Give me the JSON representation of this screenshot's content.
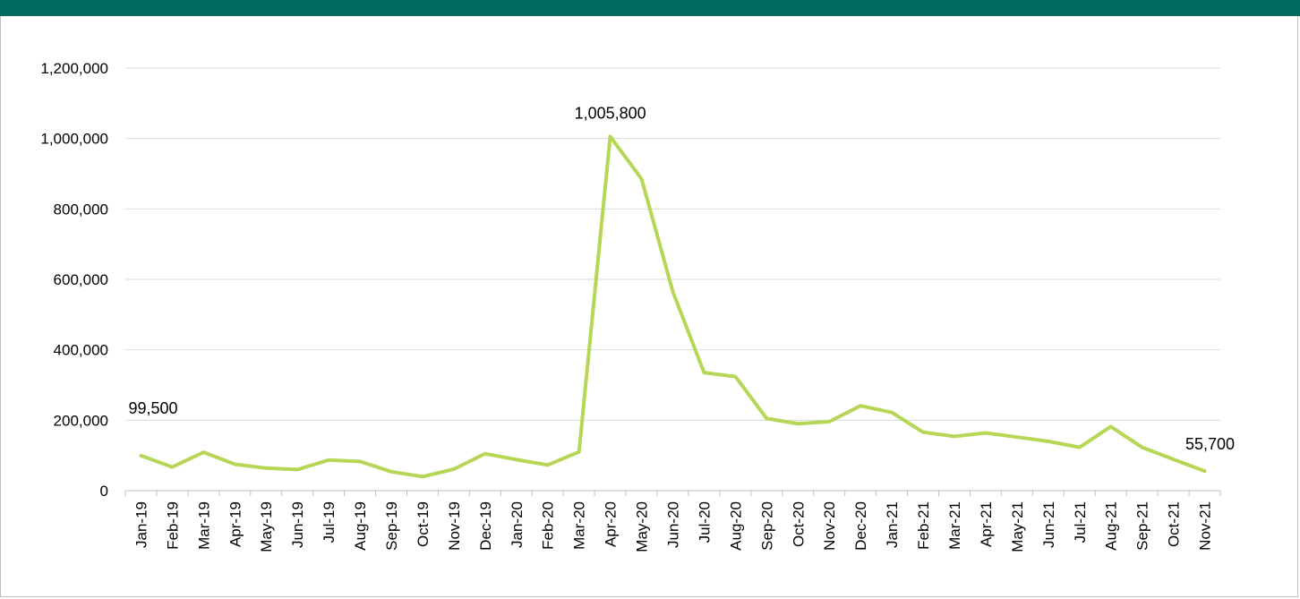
{
  "colors": {
    "header": "#006b5f",
    "line": "#b6d656",
    "grid": "#d9d9d9",
    "axis": "#bfbfbf"
  },
  "chart_data": {
    "type": "line",
    "title": "",
    "xlabel": "",
    "ylabel": "",
    "ylim": [
      0,
      1200000
    ],
    "yticks": [
      0,
      200000,
      400000,
      600000,
      800000,
      1000000,
      1200000
    ],
    "ytick_labels": [
      "0",
      "200,000",
      "400,000",
      "600,000",
      "800,000",
      "1,000,000",
      "1,200,000"
    ],
    "grid": true,
    "legend": "none",
    "categories": [
      "Jan-19",
      "Feb-19",
      "Mar-19",
      "Apr-19",
      "May-19",
      "Jun-19",
      "Jul-19",
      "Aug-19",
      "Sep-19",
      "Oct-19",
      "Nov-19",
      "Dec-19",
      "Jan-20",
      "Feb-20",
      "Mar-20",
      "Apr-20",
      "May-20",
      "Jun-20",
      "Jul-20",
      "Aug-20",
      "Sep-20",
      "Oct-20",
      "Nov-20",
      "Dec-20",
      "Jan-21",
      "Feb-21",
      "Mar-21",
      "Apr-21",
      "May-21",
      "Jun-21",
      "Jul-21",
      "Aug-21",
      "Sep-21",
      "Oct-21",
      "Nov-21"
    ],
    "series": [
      {
        "values": [
          99500,
          67000,
          109000,
          75000,
          64000,
          60000,
          87000,
          83000,
          54000,
          40000,
          61000,
          105000,
          88000,
          73000,
          110000,
          1005800,
          885000,
          565000,
          335000,
          324000,
          205000,
          190000,
          196000,
          241000,
          222000,
          166000,
          154000,
          164000,
          152000,
          140000,
          123000,
          182000,
          123000,
          89000,
          55700
        ]
      }
    ],
    "data_labels": [
      {
        "index": 0,
        "text": "99,500"
      },
      {
        "index": 15,
        "text": "1,005,800"
      },
      {
        "index": 34,
        "text": "55,700"
      }
    ]
  }
}
